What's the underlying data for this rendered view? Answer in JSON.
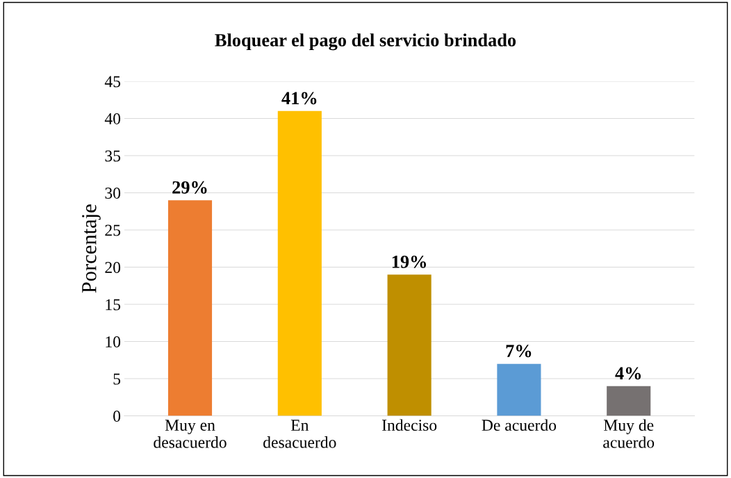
{
  "chart_data": {
    "type": "bar",
    "title": "Bloquear el pago del servicio brindado",
    "ylabel": "Porcentaje",
    "categories": [
      "Muy en\ndesacuerdo",
      "En\ndesacuerdo",
      "Indeciso",
      "De acuerdo",
      "Muy de\nacuerdo"
    ],
    "values": [
      29,
      41,
      19,
      7,
      4
    ],
    "colors": [
      "#ed7d31",
      "#ffc000",
      "#bf8f00",
      "#5b9bd5",
      "#767171"
    ],
    "value_labels": [
      "29%",
      "41%",
      "19%",
      "7%",
      "4%"
    ],
    "ylim": [
      0,
      45
    ],
    "yticks": [
      0,
      5,
      10,
      15,
      20,
      25,
      30,
      35,
      40,
      45
    ],
    "grid": "y",
    "legend": false
  }
}
